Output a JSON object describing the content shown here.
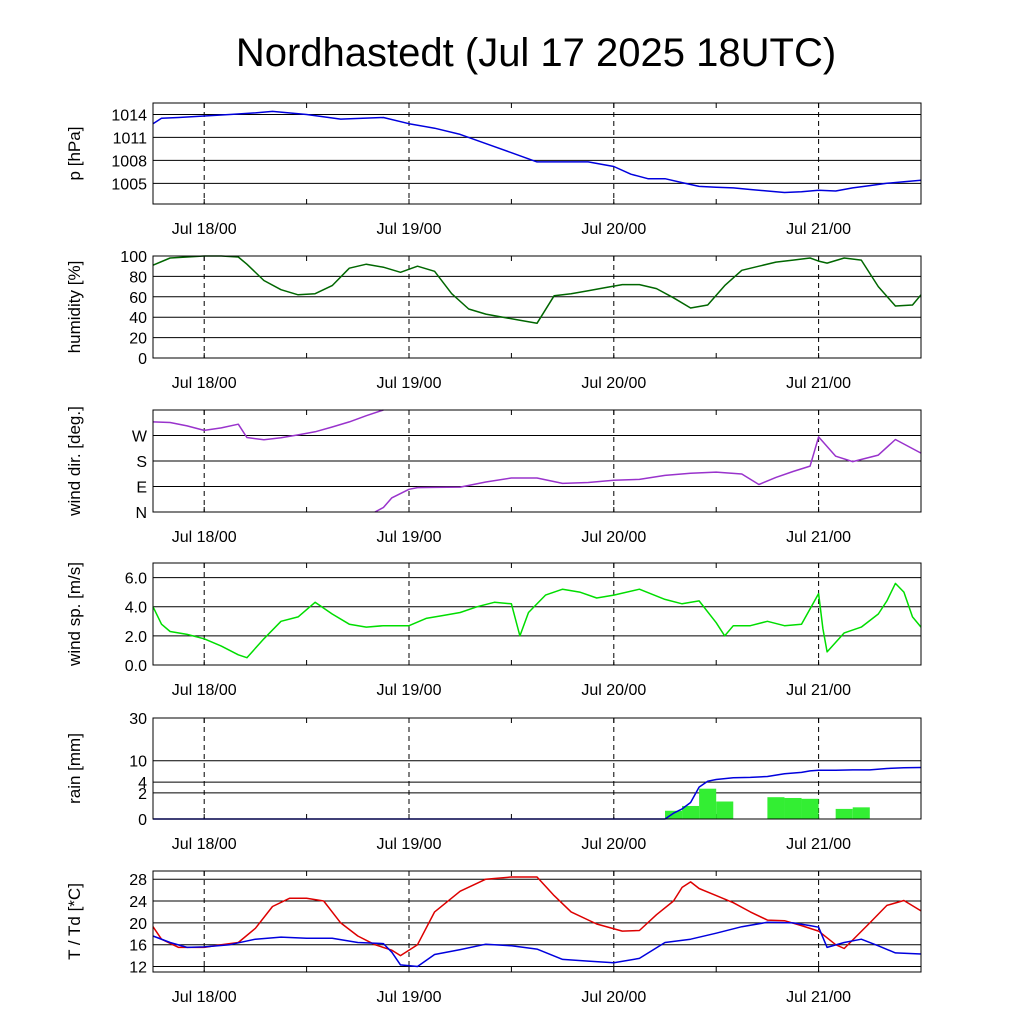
{
  "title": "Nordhastedt (Jul 17 2025 18UTC)",
  "x_axis": {
    "unit": "hours since Jul 17 18UTC",
    "range": [
      0,
      90
    ],
    "day_ticks": [
      6,
      30,
      54,
      78
    ],
    "day_tick_labels": [
      "Jul 18/00",
      "Jul 19/00",
      "Jul 20/00",
      "Jul 21/00"
    ],
    "minor_ticks": [
      0,
      6,
      18,
      30,
      42,
      54,
      66,
      78,
      90
    ]
  },
  "chart_data": [
    {
      "id": "pressure",
      "type": "line",
      "ylabel": "p [hPa]",
      "ylim": [
        1002.3,
        1015.5
      ],
      "ticks": [
        1005,
        1008,
        1011,
        1014
      ],
      "tick_labels": [
        "1005",
        "1008",
        "1011",
        "1014"
      ],
      "series": [
        {
          "color": "#0000dd",
          "x": [
            0,
            1,
            3,
            6,
            9,
            12,
            14,
            18,
            22,
            27,
            30,
            33,
            36,
            39,
            42,
            45,
            48,
            51,
            54,
            56,
            58,
            60,
            62,
            64,
            66,
            68,
            70,
            72,
            74,
            76,
            78,
            80,
            82,
            84,
            86,
            88,
            90
          ],
          "y": [
            1012.8,
            1013.5,
            1013.6,
            1013.8,
            1014.0,
            1014.2,
            1014.4,
            1014.0,
            1013.4,
            1013.6,
            1012.8,
            1012.2,
            1011.4,
            1010.2,
            1009.0,
            1007.8,
            1007.8,
            1007.8,
            1007.2,
            1006.2,
            1005.6,
            1005.6,
            1005.1,
            1004.6,
            1004.5,
            1004.4,
            1004.2,
            1004.0,
            1003.8,
            1003.9,
            1004.1,
            1004.0,
            1004.4,
            1004.7,
            1005.0,
            1005.2,
            1005.4
          ]
        }
      ]
    },
    {
      "id": "humidity",
      "type": "line",
      "ylabel": "humidity [%]",
      "ylim": [
        0,
        100
      ],
      "ticks": [
        0,
        20,
        40,
        60,
        80,
        100
      ],
      "tick_labels": [
        "0",
        "20",
        "40",
        "60",
        "80",
        "100"
      ],
      "series": [
        {
          "color": "#006600",
          "x": [
            0,
            2,
            4,
            6,
            8,
            10,
            11,
            13,
            15,
            17,
            19,
            21,
            23,
            25,
            27,
            29,
            31,
            33,
            35,
            37,
            39,
            41,
            43,
            45,
            47,
            49,
            51,
            53,
            55,
            57,
            59,
            61,
            63,
            65,
            67,
            69,
            71,
            73,
            75,
            77,
            78,
            79,
            81,
            83,
            85,
            87,
            89,
            90
          ],
          "y": [
            91,
            98,
            99,
            100,
            100,
            99,
            92,
            76,
            67,
            62,
            63,
            71,
            88,
            92,
            89,
            84,
            90,
            85,
            63,
            48,
            43,
            40,
            37,
            34,
            61,
            63,
            66,
            69,
            72,
            72,
            68,
            59,
            49,
            52,
            71,
            86,
            90,
            94,
            96,
            98,
            95,
            93,
            98,
            96,
            70,
            51,
            52,
            62
          ]
        }
      ]
    },
    {
      "id": "wind_dir",
      "type": "line",
      "ylabel": "wind dir. [deg.]",
      "ylim": [
        0,
        360
      ],
      "ticks": [
        0,
        90,
        180,
        270
      ],
      "tick_labels": [
        "N",
        "E",
        "S",
        "W"
      ],
      "series": [
        {
          "color": "#9933cc",
          "x": [
            0,
            2,
            4,
            6,
            8,
            10,
            11,
            13,
            15,
            17,
            19,
            21,
            23,
            25,
            27
          ],
          "y": [
            318,
            316,
            304,
            288,
            297,
            310,
            263,
            255,
            262,
            272,
            283,
            300,
            318,
            340,
            360
          ]
        },
        {
          "color": "#9933cc",
          "x": [
            26,
            27,
            28,
            30,
            31,
            33,
            36,
            39,
            42,
            45,
            48,
            51,
            54,
            57,
            60,
            63,
            66,
            69,
            71,
            73,
            75,
            77,
            78,
            80,
            82,
            85,
            87,
            90
          ],
          "y": [
            0,
            16,
            50,
            80,
            86,
            87,
            88,
            106,
            120,
            120,
            101,
            104,
            112,
            115,
            129,
            137,
            141,
            134,
            97,
            122,
            143,
            162,
            265,
            197,
            178,
            201,
            256,
            208
          ]
        }
      ]
    },
    {
      "id": "wind_speed",
      "type": "line",
      "ylabel": "wind sp. [m/s]",
      "ylim": [
        0,
        7
      ],
      "ticks": [
        0,
        2,
        4,
        6
      ],
      "tick_labels": [
        "0.0",
        "2.0",
        "4.0",
        "6.0"
      ],
      "series": [
        {
          "color": "#00dd00",
          "x": [
            0,
            1,
            2,
            4,
            6,
            8,
            10,
            11,
            13,
            15,
            17,
            19,
            21,
            23,
            25,
            27,
            30,
            32,
            34,
            36,
            38,
            40,
            42,
            43,
            44,
            46,
            48,
            50,
            52,
            54,
            57,
            60,
            62,
            64,
            66,
            67,
            68,
            70,
            72,
            74,
            76,
            78,
            78.5,
            79,
            81,
            83,
            85,
            86,
            87,
            88,
            89,
            90
          ],
          "y": [
            4.0,
            2.8,
            2.3,
            2.1,
            1.8,
            1.3,
            0.7,
            0.5,
            1.8,
            3.0,
            3.3,
            4.3,
            3.5,
            2.8,
            2.6,
            2.7,
            2.7,
            3.2,
            3.4,
            3.6,
            4.0,
            4.3,
            4.2,
            2.0,
            3.6,
            4.8,
            5.2,
            5.0,
            4.6,
            4.8,
            5.2,
            4.5,
            4.2,
            4.4,
            2.9,
            2.0,
            2.7,
            2.7,
            3.0,
            2.7,
            2.8,
            4.9,
            2.5,
            0.9,
            2.2,
            2.6,
            3.5,
            4.4,
            5.6,
            5.0,
            3.3,
            2.6
          ]
        }
      ]
    },
    {
      "id": "rain",
      "type": "bar+line",
      "ylabel": "rain [mm]",
      "ylim": [
        0,
        30
      ],
      "ticks": [
        0,
        2,
        4,
        10,
        30
      ],
      "tick_labels": [
        "0",
        "2",
        "4",
        "10",
        "30"
      ],
      "scale": "sqrt",
      "bars": {
        "color": "#33ee33",
        "bin_hours": 2,
        "x": [
          61,
          63,
          65,
          67,
          73,
          75,
          77,
          81,
          83,
          85
        ],
        "values": [
          0.2,
          0.5,
          2.7,
          0.9,
          1.4,
          1.3,
          1.2,
          0.3,
          0.4,
          0.0
        ]
      },
      "series": [
        {
          "color": "#0000dd",
          "x": [
            0,
            60,
            61,
            62,
            63,
            64,
            65,
            66,
            68,
            70,
            72,
            74,
            76,
            77,
            78,
            80,
            82,
            84,
            86,
            88,
            90
          ],
          "y": [
            0,
            0,
            0.1,
            0.3,
            0.8,
            3.0,
            4.2,
            4.6,
            5.0,
            5.1,
            5.3,
            6.0,
            6.4,
            6.8,
            7.0,
            7.0,
            7.1,
            7.1,
            7.5,
            7.7,
            7.8
          ]
        }
      ]
    },
    {
      "id": "temperature",
      "type": "line",
      "ylabel": "T / Td [*C]",
      "ylim": [
        11,
        29.5
      ],
      "ticks": [
        12,
        16,
        20,
        24,
        28
      ],
      "tick_labels": [
        "12",
        "16",
        "20",
        "24",
        "28"
      ],
      "series": [
        {
          "name": "T",
          "color": "#dd0000",
          "x": [
            0,
            1,
            3,
            6,
            8,
            10,
            12,
            14,
            16,
            18,
            20,
            22,
            24,
            26,
            28,
            29,
            31,
            33,
            36,
            39,
            42,
            45,
            47,
            49,
            52,
            55,
            57,
            59,
            61,
            62,
            63,
            64,
            66,
            68,
            70,
            72,
            74,
            76,
            78,
            80,
            81,
            84,
            86,
            88,
            90
          ],
          "y": [
            19.3,
            17,
            15.5,
            15.5,
            16.0,
            16.4,
            19,
            23,
            24.5,
            24.5,
            24,
            20,
            17.6,
            16,
            15,
            14,
            16,
            22,
            25.8,
            28.0,
            28.4,
            28.4,
            25,
            22,
            19.8,
            18.5,
            18.6,
            21.5,
            24,
            26.5,
            27.5,
            26.3,
            25,
            23.7,
            22,
            20.5,
            20.4,
            19.5,
            18.5,
            16,
            15.3,
            20,
            23.2,
            24.1,
            22.2
          ]
        },
        {
          "name": "Td",
          "color": "#0000dd",
          "x": [
            0,
            2,
            4,
            6,
            9,
            12,
            15,
            18,
            21,
            24,
            27,
            28,
            29,
            31,
            33,
            36,
            39,
            42,
            45,
            48,
            51,
            54,
            57,
            60,
            63,
            66,
            69,
            72,
            75,
            77,
            78,
            79,
            81,
            83,
            85,
            87,
            90
          ],
          "y": [
            17.6,
            16.4,
            15.5,
            15.6,
            16.0,
            17.0,
            17.4,
            17.2,
            17.2,
            16.4,
            16.2,
            14.6,
            12.3,
            12.0,
            14.2,
            15.1,
            16.1,
            15.8,
            15.2,
            13.3,
            13.0,
            12.7,
            13.5,
            16.4,
            17.0,
            18.1,
            19.3,
            20.1,
            20.0,
            19.5,
            19.2,
            15.5,
            16.4,
            17.0,
            15.8,
            14.5,
            14.3
          ]
        }
      ]
    }
  ]
}
